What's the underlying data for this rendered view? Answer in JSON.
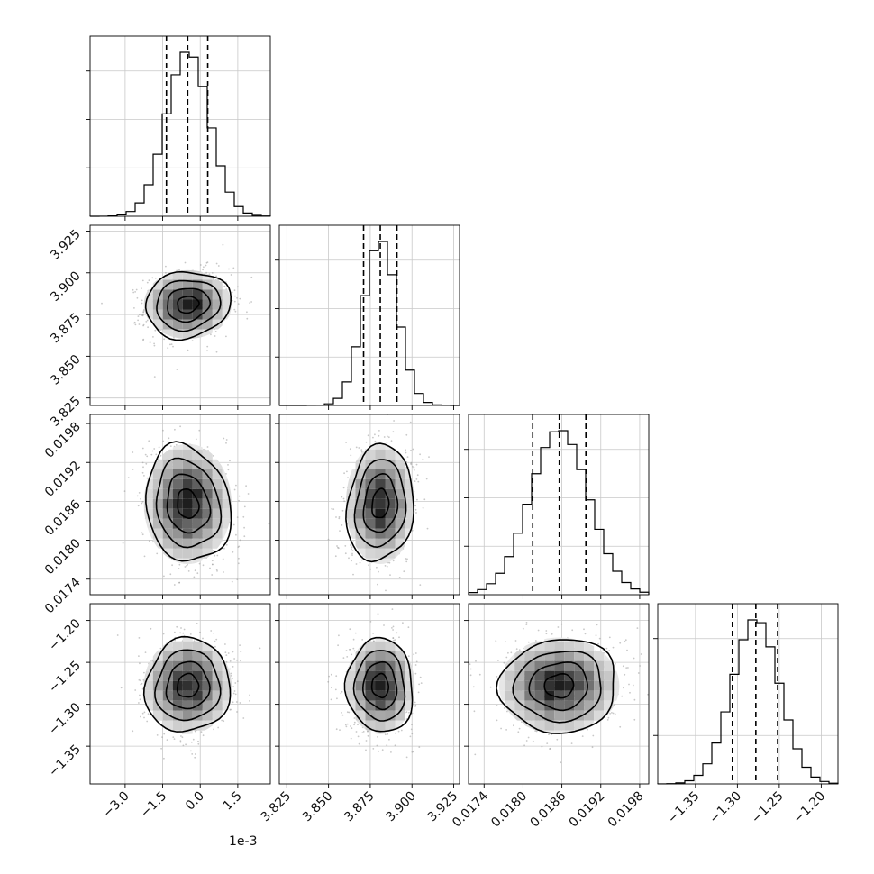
{
  "chart_data": {
    "type": "corner",
    "offset_text": "1e-3",
    "params": [
      {
        "mean": -0.0005,
        "sd": 0.00085,
        "q": [
          -0.00135,
          -0.0005,
          0.0003
        ],
        "range": [
          -0.0044,
          0.0028
        ],
        "ticks": [
          -3.0,
          -1.5,
          0.0,
          1.5
        ],
        "tick_labels": [
          "−3.0",
          "−1.5",
          "0.0",
          "1.5"
        ],
        "tick_scale": 0.001
      },
      {
        "mean": 3.881,
        "sd": 0.01,
        "q": [
          3.871,
          3.881,
          3.891
        ],
        "range": [
          3.8205,
          3.9285
        ],
        "ticks": [
          3.825,
          3.85,
          3.875,
          3.9,
          3.925
        ],
        "tick_labels": [
          "3.825",
          "3.850",
          "3.875",
          "3.900",
          "3.925"
        ],
        "tick_scale": 1
      },
      {
        "mean": 0.01856,
        "sd": 0.00045,
        "q": [
          0.01815,
          0.01856,
          0.01897
        ],
        "range": [
          0.01716,
          0.01994
        ],
        "ticks": [
          0.0174,
          0.018,
          0.0186,
          0.0192,
          0.0198
        ],
        "tick_labels": [
          "0.0174",
          "0.0180",
          "0.0186",
          "0.0192",
          "0.0198"
        ],
        "tick_scale": 1
      },
      {
        "mean": -1.278,
        "sd": 0.028,
        "q": [
          -1.306,
          -1.278,
          -1.252
        ],
        "range": [
          -1.395,
          -1.18
        ],
        "ticks": [
          -1.35,
          -1.3,
          -1.25,
          -1.2
        ],
        "tick_labels": [
          "−1.35",
          "−1.30",
          "−1.25",
          "−1.20"
        ],
        "tick_scale": 1
      }
    ],
    "contour_levels_sigma": [
      0.5,
      1.0,
      1.5,
      2.0
    ],
    "hist_bins": 20,
    "grid": true
  }
}
